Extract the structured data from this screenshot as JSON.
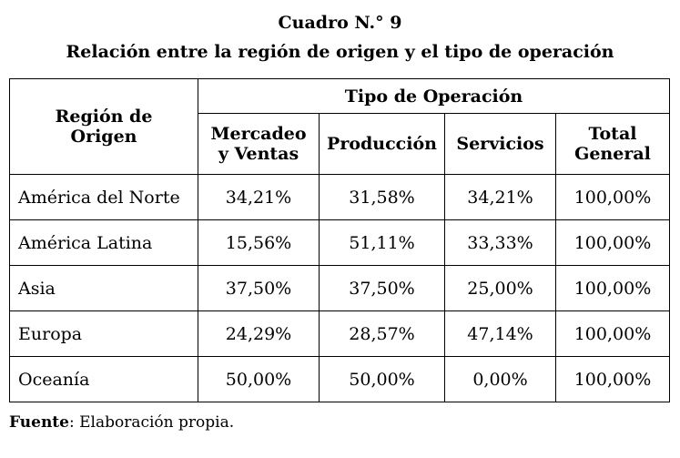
{
  "caption": {
    "number": "Cuadro N.° 9",
    "title": "Relación entre la región de origen y el tipo de operación"
  },
  "table": {
    "row_header": "Región de Origen",
    "group_header": "Tipo de Operación",
    "columns": [
      "Mercadeo y Ventas",
      "Producción",
      "Servicios",
      "Total General"
    ],
    "rows": [
      {
        "region": "América del Norte",
        "values": [
          "34,21%",
          "31,58%",
          "34,21%",
          "100,00%"
        ]
      },
      {
        "region": "América Latina",
        "values": [
          "15,56%",
          "51,11%",
          "33,33%",
          "100,00%"
        ]
      },
      {
        "region": "Asia",
        "values": [
          "37,50%",
          "37,50%",
          "25,00%",
          "100,00%"
        ]
      },
      {
        "region": "Europa",
        "values": [
          "24,29%",
          "28,57%",
          "47,14%",
          "100,00%"
        ]
      },
      {
        "region": "Oceanía",
        "values": [
          "50,00%",
          "50,00%",
          "0,00%",
          "100,00%"
        ]
      }
    ]
  },
  "source": {
    "label": "Fuente",
    "text": ": Elaboración propia."
  }
}
